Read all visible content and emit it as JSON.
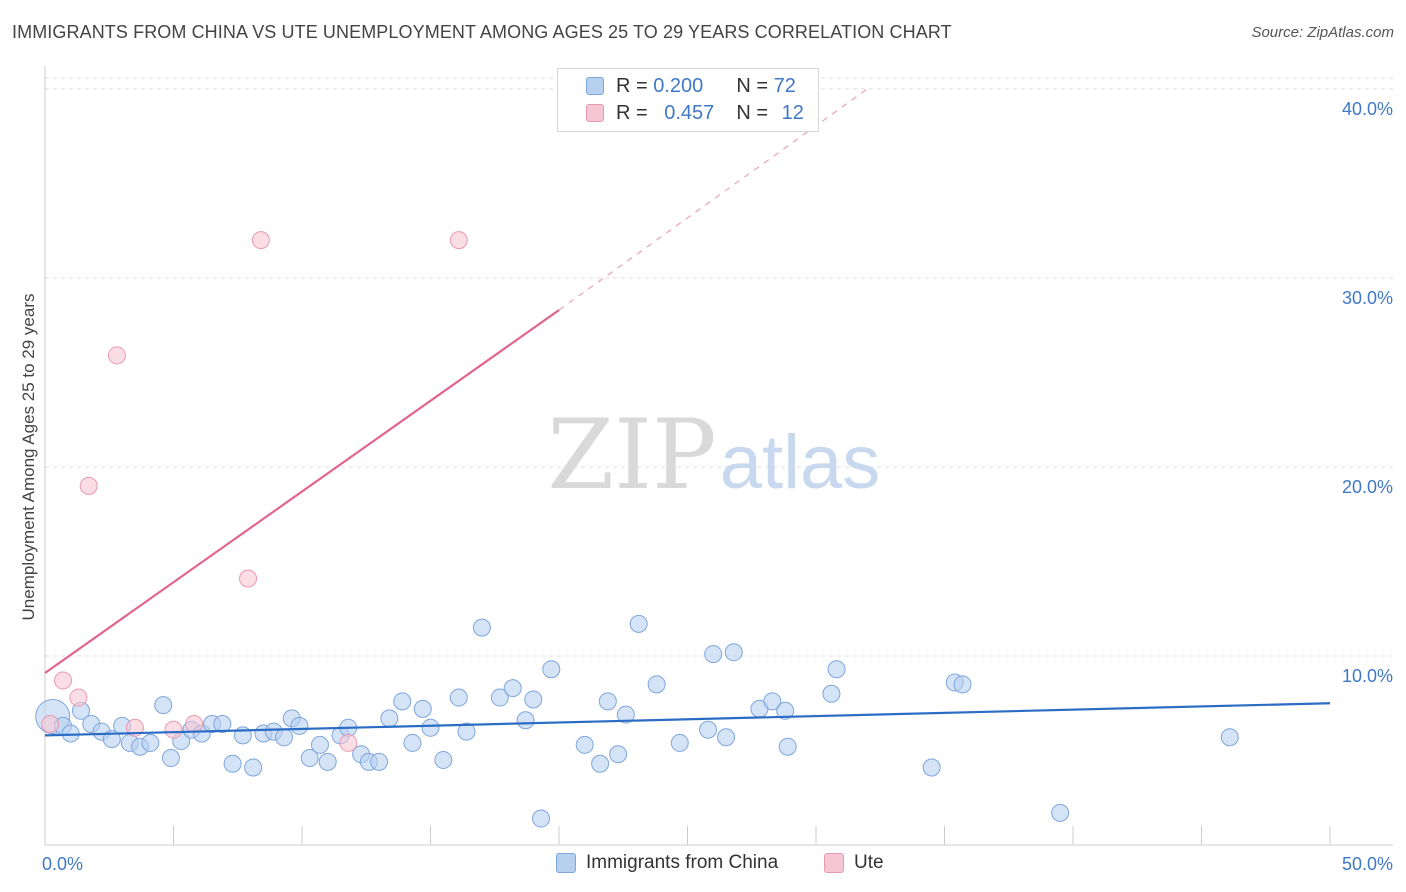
{
  "header": {
    "title": "IMMIGRANTS FROM CHINA VS UTE UNEMPLOYMENT AMONG AGES 25 TO 29 YEARS CORRELATION CHART",
    "source": "Source: ZipAtlas.com"
  },
  "legend": {
    "rows": [
      {
        "r_label": "R =",
        "r_value": "0.200",
        "n_label": "N =",
        "n_value": "72"
      },
      {
        "r_label": "R =",
        "r_value": "0.457",
        "n_label": "N =",
        "n_value": "12"
      }
    ]
  },
  "bottom_legend": {
    "series_a": "Immigrants from China",
    "series_b": "Ute"
  },
  "watermark": {
    "zip": "ZIP",
    "atlas": "atlas"
  },
  "colors": {
    "blue_fill": "#b7d0f0",
    "blue_stroke": "#7fa6dc",
    "blue_line": "#2b6cc4",
    "pink_fill": "#f7c6d4",
    "pink_stroke": "#e89ab2",
    "pink_line": "#e0648f",
    "axis_text": "#3f79c6",
    "grid": "#dddddd"
  },
  "chart_data": {
    "type": "scatter",
    "title": "IMMIGRANTS FROM CHINA VS UTE UNEMPLOYMENT AMONG AGES 25 TO 29 YEARS CORRELATION CHART",
    "xlabel": "",
    "ylabel": "Unemployment Among Ages 25 to 29 years",
    "xlim": [
      0,
      50
    ],
    "ylim": [
      0,
      41
    ],
    "x_tick_labels": [
      "0.0%",
      "50.0%"
    ],
    "y_ticks": [
      10,
      20,
      30,
      40
    ],
    "y_tick_labels": [
      "10.0%",
      "20.0%",
      "30.0%",
      "40.0%"
    ],
    "legend_position": "top-center",
    "series": [
      {
        "name": "Immigrants from China",
        "R": 0.2,
        "N": 72,
        "trend": {
          "x0": 0,
          "y0": 5.8,
          "x1": 50,
          "y1": 7.5
        },
        "points": [
          {
            "x": 0.3,
            "y": 6.8,
            "big": true
          },
          {
            "x": 0.7,
            "y": 6.3
          },
          {
            "x": 1.0,
            "y": 5.9
          },
          {
            "x": 1.4,
            "y": 7.1
          },
          {
            "x": 1.8,
            "y": 6.4
          },
          {
            "x": 2.2,
            "y": 6.0
          },
          {
            "x": 2.6,
            "y": 5.6
          },
          {
            "x": 3.0,
            "y": 6.3
          },
          {
            "x": 3.3,
            "y": 5.4
          },
          {
            "x": 3.7,
            "y": 5.2
          },
          {
            "x": 4.1,
            "y": 5.4
          },
          {
            "x": 4.6,
            "y": 7.4
          },
          {
            "x": 4.9,
            "y": 4.6
          },
          {
            "x": 5.3,
            "y": 5.5
          },
          {
            "x": 5.7,
            "y": 6.1
          },
          {
            "x": 6.1,
            "y": 5.9
          },
          {
            "x": 6.5,
            "y": 6.4
          },
          {
            "x": 6.9,
            "y": 6.4
          },
          {
            "x": 7.3,
            "y": 4.3
          },
          {
            "x": 7.7,
            "y": 5.8
          },
          {
            "x": 8.1,
            "y": 4.1
          },
          {
            "x": 8.5,
            "y": 5.9
          },
          {
            "x": 8.9,
            "y": 6.0
          },
          {
            "x": 9.3,
            "y": 5.7
          },
          {
            "x": 9.6,
            "y": 6.7
          },
          {
            "x": 9.9,
            "y": 6.3
          },
          {
            "x": 10.3,
            "y": 4.6
          },
          {
            "x": 10.7,
            "y": 5.3
          },
          {
            "x": 11.0,
            "y": 4.4
          },
          {
            "x": 11.5,
            "y": 5.8
          },
          {
            "x": 11.8,
            "y": 6.2
          },
          {
            "x": 12.3,
            "y": 4.8
          },
          {
            "x": 12.6,
            "y": 4.4
          },
          {
            "x": 13.0,
            "y": 4.4
          },
          {
            "x": 13.4,
            "y": 6.7
          },
          {
            "x": 13.9,
            "y": 7.6
          },
          {
            "x": 14.3,
            "y": 5.4
          },
          {
            "x": 14.7,
            "y": 7.2
          },
          {
            "x": 15.0,
            "y": 6.2
          },
          {
            "x": 15.5,
            "y": 4.5
          },
          {
            "x": 16.1,
            "y": 7.8
          },
          {
            "x": 16.4,
            "y": 6.0
          },
          {
            "x": 17.0,
            "y": 11.5
          },
          {
            "x": 17.7,
            "y": 7.8
          },
          {
            "x": 18.2,
            "y": 8.3
          },
          {
            "x": 18.7,
            "y": 6.6
          },
          {
            "x": 19.0,
            "y": 7.7
          },
          {
            "x": 19.3,
            "y": 1.4
          },
          {
            "x": 19.7,
            "y": 9.3
          },
          {
            "x": 21.0,
            "y": 5.3
          },
          {
            "x": 21.6,
            "y": 4.3
          },
          {
            "x": 21.9,
            "y": 7.6
          },
          {
            "x": 22.3,
            "y": 4.8
          },
          {
            "x": 22.6,
            "y": 6.9
          },
          {
            "x": 23.1,
            "y": 11.7
          },
          {
            "x": 23.8,
            "y": 8.5
          },
          {
            "x": 24.7,
            "y": 5.4
          },
          {
            "x": 25.8,
            "y": 6.1
          },
          {
            "x": 26.0,
            "y": 10.1
          },
          {
            "x": 26.5,
            "y": 5.7
          },
          {
            "x": 26.8,
            "y": 10.2
          },
          {
            "x": 27.8,
            "y": 7.2
          },
          {
            "x": 28.3,
            "y": 7.6
          },
          {
            "x": 28.8,
            "y": 7.1
          },
          {
            "x": 28.9,
            "y": 5.2
          },
          {
            "x": 30.6,
            "y": 8.0
          },
          {
            "x": 30.8,
            "y": 9.3
          },
          {
            "x": 34.5,
            "y": 4.1
          },
          {
            "x": 35.4,
            "y": 8.6
          },
          {
            "x": 35.7,
            "y": 8.5
          },
          {
            "x": 39.5,
            "y": 1.7
          },
          {
            "x": 46.1,
            "y": 5.7
          }
        ]
      },
      {
        "name": "Ute",
        "R": 0.457,
        "N": 12,
        "trend": {
          "x0": 0,
          "y0": 9.1,
          "x1": 20,
          "y1": 28.3,
          "dash_to_x": 32,
          "dash_to_y": 40.0
        },
        "points": [
          {
            "x": 0.2,
            "y": 6.4
          },
          {
            "x": 0.7,
            "y": 8.7
          },
          {
            "x": 1.3,
            "y": 7.8
          },
          {
            "x": 1.7,
            "y": 19.0
          },
          {
            "x": 2.8,
            "y": 25.9
          },
          {
            "x": 3.5,
            "y": 6.2
          },
          {
            "x": 5.0,
            "y": 6.1
          },
          {
            "x": 5.8,
            "y": 6.4
          },
          {
            "x": 7.9,
            "y": 14.1
          },
          {
            "x": 8.4,
            "y": 32.0
          },
          {
            "x": 11.8,
            "y": 5.4
          },
          {
            "x": 16.1,
            "y": 32.0
          }
        ]
      }
    ]
  }
}
